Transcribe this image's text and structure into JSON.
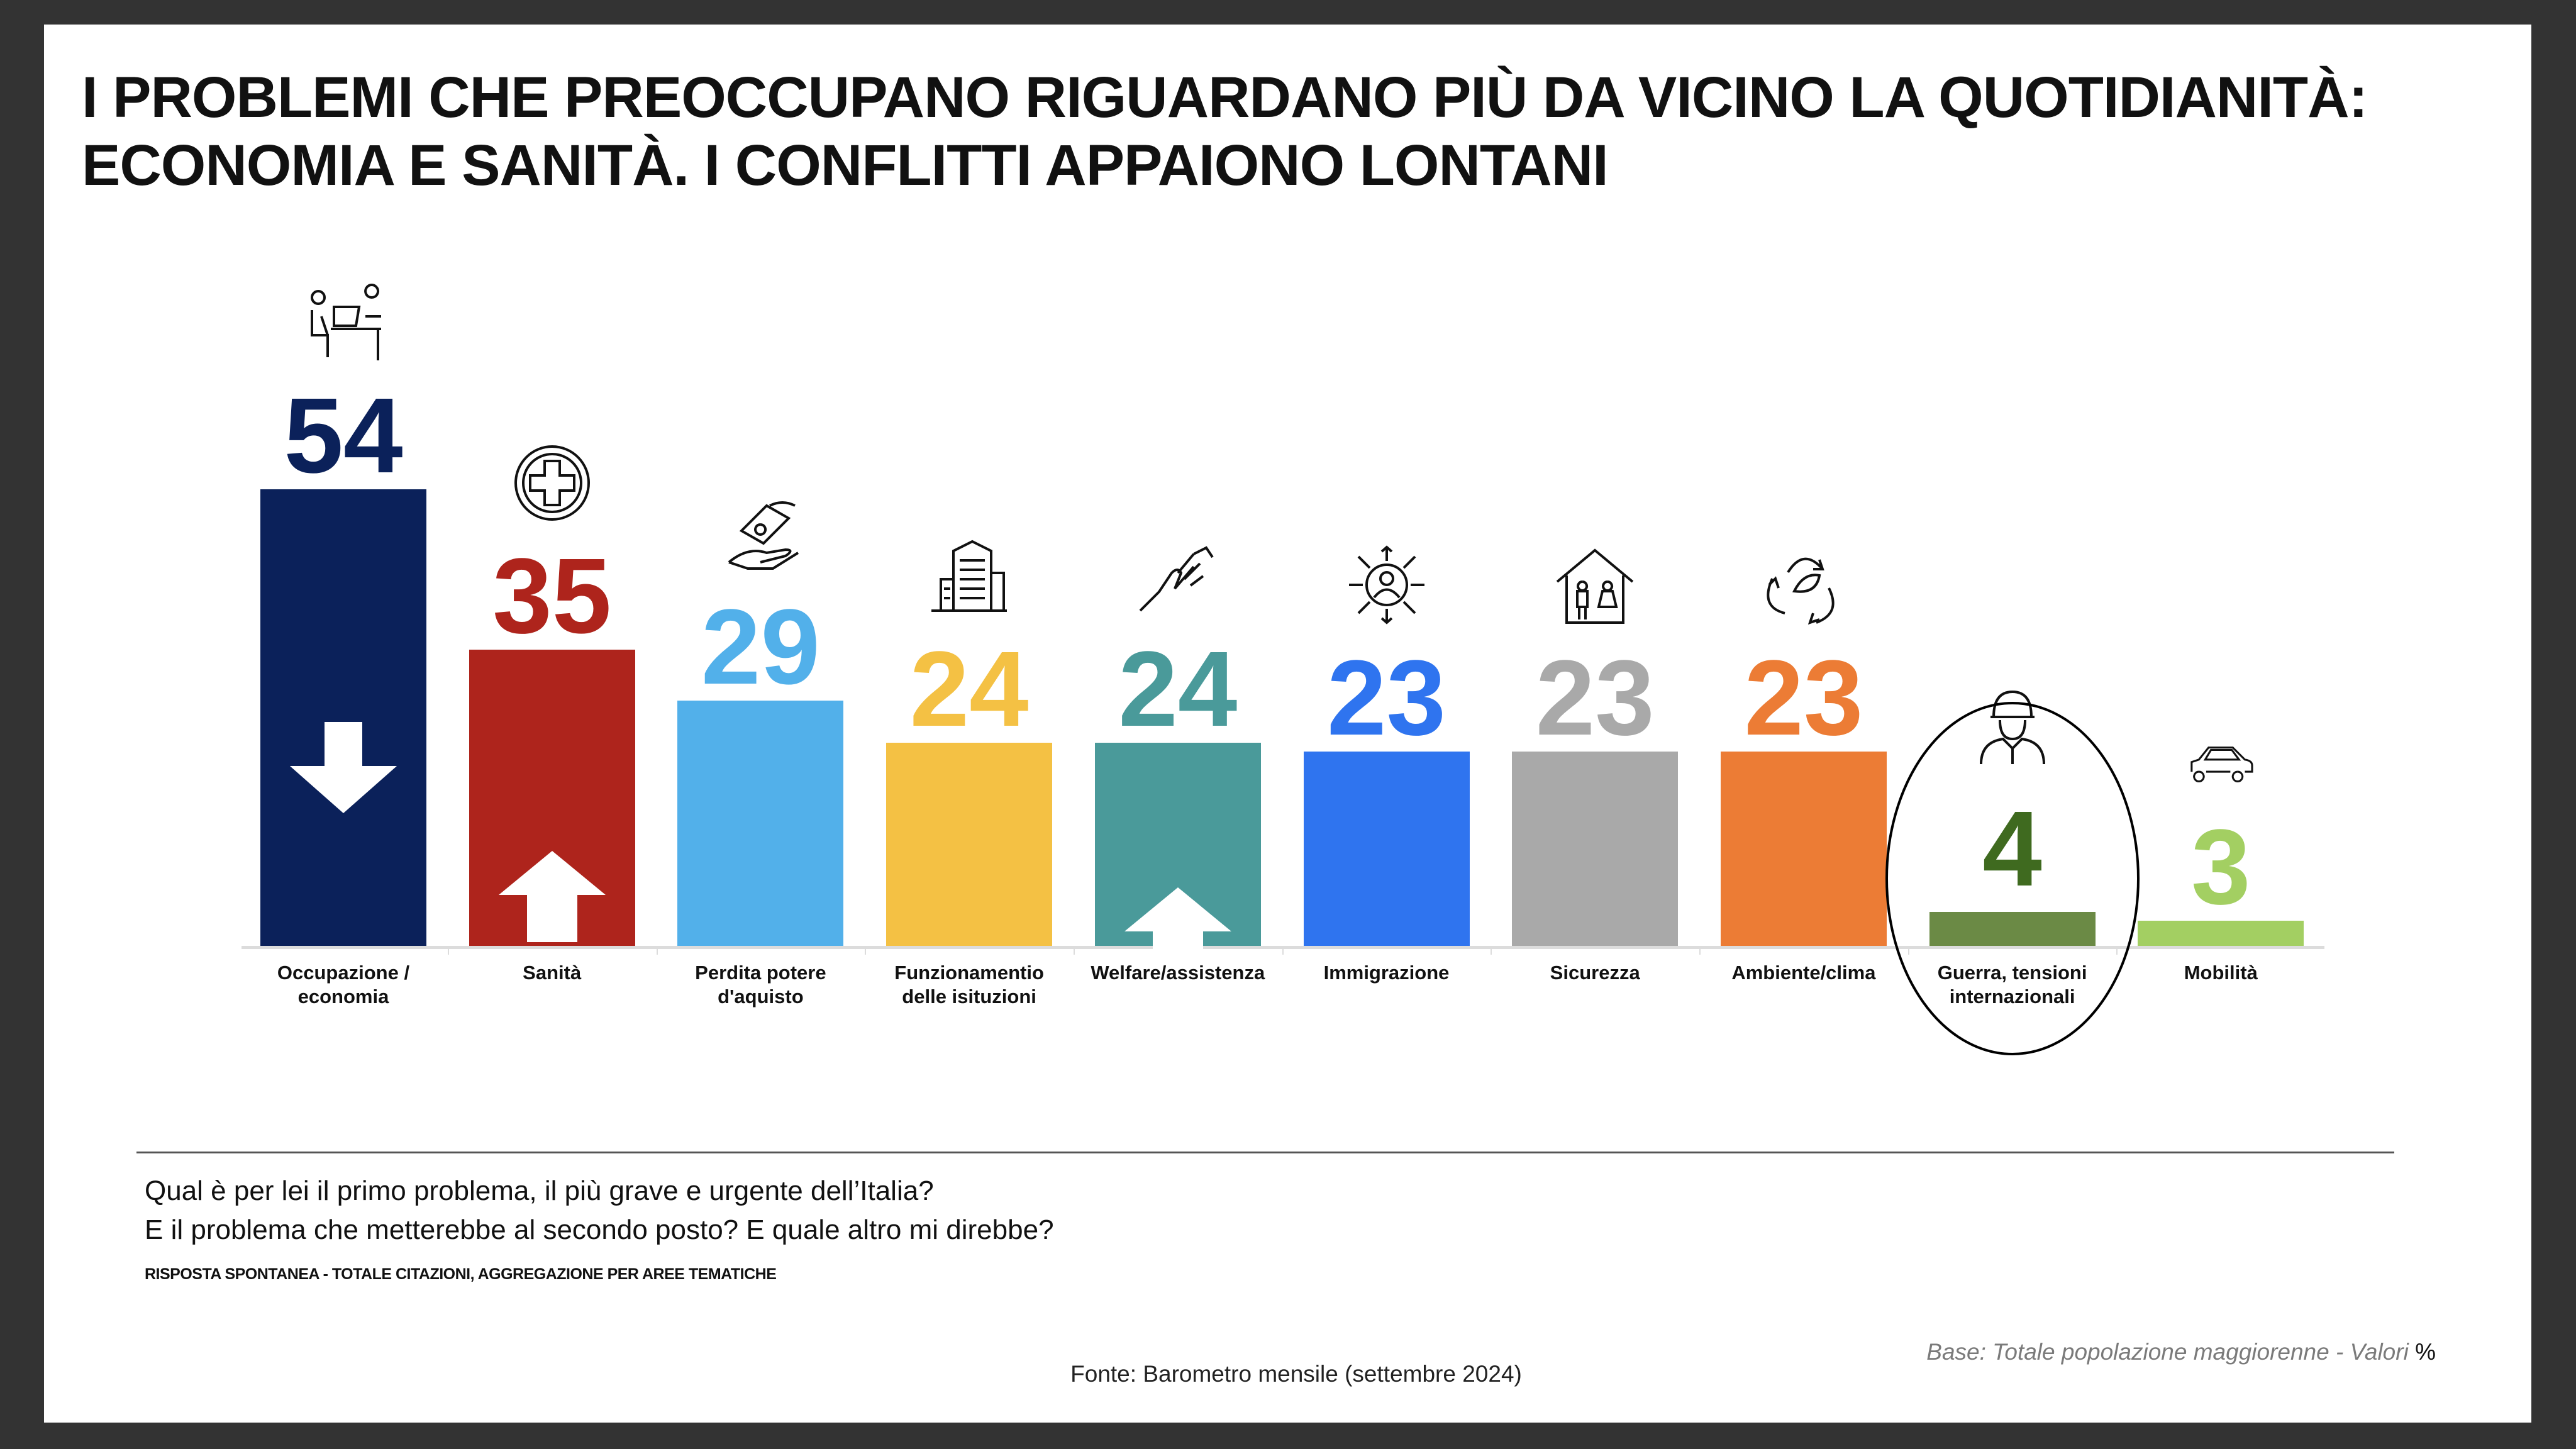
{
  "title_lines": [
    "I PROBLEMI CHE PREOCCUPANO RIGUARDANO PIÙ DA VICINO LA QUOTIDIANITÀ:",
    "ECONOMIA E SANITÀ. I CONFLITTI APPAIONO LONTANI"
  ],
  "chart_data": {
    "type": "bar",
    "title": "I PROBLEMI CHE PREOCCUPANO RIGUARDANO PIÙ DA VICINO LA QUOTIDIANITÀ: ECONOMIA E SANITÀ. I CONFLITTI APPAIONO LONTANI",
    "categories": [
      "Occupazione /\neconomia",
      "Sanità",
      "Perdita potere\nd'aquisto",
      "Funzionamentio\ndelle isituzioni",
      "Welfare/assistenza",
      "Immigrazione",
      "Sicurezza",
      "Ambiente/clima",
      "Guerra, tensioni\ninternazionali",
      "Mobilità"
    ],
    "values": [
      54,
      35,
      29,
      24,
      24,
      23,
      23,
      23,
      4,
      3
    ],
    "colors": [
      "#0b215a",
      "#ae241c",
      "#52b0ea",
      "#f4c144",
      "#4a9a9a",
      "#2f74ef",
      "#a9a9a9",
      "#ec7c35",
      "#6b8a45",
      "#a3cf62"
    ],
    "label_colors": [
      "#0b215a",
      "#ae241c",
      "#52b0ea",
      "#f4c144",
      "#4a9a9a",
      "#2f74ef",
      "#a9a9a9",
      "#ec7c35",
      "#3f6a1f",
      "#a3cf62"
    ],
    "trend_arrows": [
      "down",
      "up",
      null,
      null,
      "up",
      null,
      null,
      null,
      null,
      null
    ],
    "icons": [
      "desk-worker-icon",
      "medical-cross-icon",
      "money-hand-icon",
      "building-icon",
      "helping-hand-icon",
      "person-network-icon",
      "house-family-icon",
      "recycle-leaf-icon",
      "soldier-icon",
      "car-icon"
    ],
    "highlighted_category": "Guerra, tensioni\ninternazionali",
    "xlabel": "",
    "ylabel": "",
    "ylim": [
      0,
      60
    ],
    "grid": false,
    "unit": "%"
  },
  "question_lines": [
    "Qual è per lei il primo problema, il più grave e urgente dell’Italia?",
    "E il problema che metterebbe al secondo posto? E quale altro mi direbbe?"
  ],
  "subtitle": "RISPOSTA SPONTANEA - TOTALE CITAZIONI, AGGREGAZIONE PER AREE TEMATICHE",
  "base_note": "Base: Totale popolazione maggiorenne - Valori",
  "base_unit": "%",
  "source": "Fonte: Barometro mensile (settembre 2024)"
}
